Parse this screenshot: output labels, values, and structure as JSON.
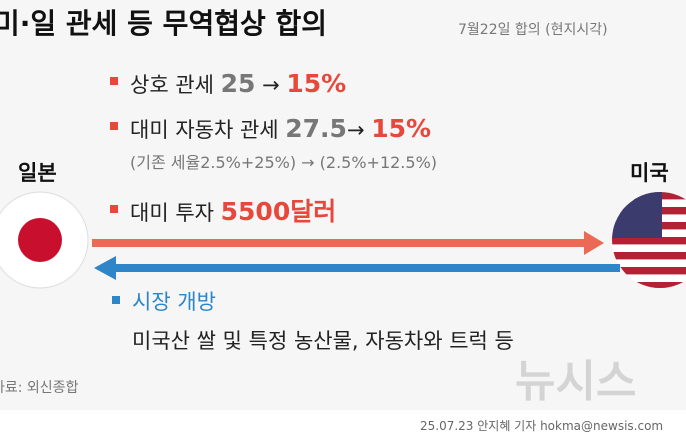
{
  "header": {
    "title": "미·일 관세 등 무역협상 합의",
    "subtitle": "7월22일 합의 (현지시각)"
  },
  "parties": {
    "left": "일본",
    "right": "미국"
  },
  "items": [
    {
      "label": "상호 관세 ",
      "before": "25",
      "arrow": " → ",
      "after": "15%"
    },
    {
      "label": "대미 자동차 관세 ",
      "before": "27.5",
      "arrow": "→ ",
      "after": "15%",
      "note": "(기존 세율2.5%+25%) → (2.5%+12.5%)"
    },
    {
      "label": "대미 투자 ",
      "amount": "5500달러"
    }
  ],
  "market": {
    "title": "시장 개방",
    "detail": "미국산 쌀 및 특정 농산물, 자동차와 트럭 등"
  },
  "footer": {
    "source": "자료: 외신종합",
    "watermark": "뉴시스",
    "credit": "25.07.23 안지혜 기자 hokma@newsis.com"
  }
}
